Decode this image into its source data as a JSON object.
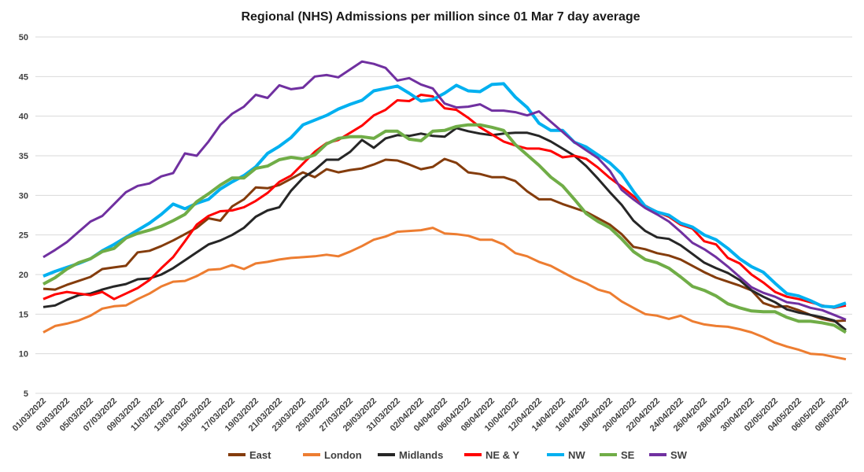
{
  "chart_data": {
    "type": "line",
    "title": "Regional (NHS) Admissions per million since 01 Mar 7 day average",
    "xlabel": "",
    "ylabel": "",
    "ylim": [
      5,
      50
    ],
    "yticks": [
      5,
      10,
      15,
      20,
      25,
      30,
      35,
      40,
      45,
      50
    ],
    "grid": true,
    "legend_position": "bottom",
    "x": [
      "01/03/2022",
      "02/03/2022",
      "03/03/2022",
      "04/03/2022",
      "05/03/2022",
      "06/03/2022",
      "07/03/2022",
      "08/03/2022",
      "09/03/2022",
      "10/03/2022",
      "11/03/2022",
      "12/03/2022",
      "13/03/2022",
      "14/03/2022",
      "15/03/2022",
      "16/03/2022",
      "17/03/2022",
      "18/03/2022",
      "19/03/2022",
      "20/03/2022",
      "21/03/2022",
      "22/03/2022",
      "23/03/2022",
      "24/03/2022",
      "25/03/2022",
      "26/03/2022",
      "27/03/2022",
      "28/03/2022",
      "29/03/2022",
      "30/03/2022",
      "31/03/2022",
      "01/04/2022",
      "02/04/2022",
      "03/04/2022",
      "04/04/2022",
      "05/04/2022",
      "06/04/2022",
      "07/04/2022",
      "08/04/2022",
      "09/04/2022",
      "10/04/2022",
      "11/04/2022",
      "12/04/2022",
      "13/04/2022",
      "14/04/2022",
      "15/04/2022",
      "16/04/2022",
      "17/04/2022",
      "18/04/2022",
      "19/04/2022",
      "20/04/2022",
      "21/04/2022",
      "22/04/2022",
      "23/04/2022",
      "24/04/2022",
      "25/04/2022",
      "26/04/2022",
      "27/04/2022",
      "28/04/2022",
      "29/04/2022",
      "30/04/2022",
      "01/05/2022",
      "02/05/2022",
      "03/05/2022",
      "04/05/2022",
      "05/05/2022",
      "06/05/2022",
      "07/05/2022",
      "08/05/2022"
    ],
    "series": [
      {
        "name": "East",
        "color": "#843c0c",
        "values": [
          18.2,
          18.1,
          18.7,
          19.2,
          19.7,
          20.7,
          20.9,
          21.1,
          22.8,
          23.0,
          23.6,
          24.3,
          25.1,
          25.9,
          27.1,
          26.8,
          28.6,
          29.5,
          31.0,
          30.9,
          31.3,
          32.1,
          32.9,
          32.3,
          33.3,
          32.9,
          33.2,
          33.4,
          33.9,
          34.5,
          34.4,
          33.9,
          33.3,
          33.6,
          34.6,
          34.1,
          32.9,
          32.7,
          32.3,
          32.3,
          31.8,
          30.5,
          29.5,
          29.5,
          28.9,
          28.4,
          27.9,
          27.1,
          26.3,
          25.1,
          23.5,
          23.2,
          22.7,
          22.4,
          21.9,
          21.1,
          20.3,
          19.6,
          19.1,
          18.6,
          18.0,
          16.4,
          15.9,
          16.0,
          15.5,
          14.9,
          14.4,
          14.1,
          14.2
        ]
      },
      {
        "name": "London",
        "color": "#ed7d31",
        "values": [
          12.7,
          13.5,
          13.8,
          14.2,
          14.8,
          15.7,
          16.0,
          16.1,
          16.9,
          17.6,
          18.5,
          19.1,
          19.2,
          19.8,
          20.6,
          20.7,
          21.2,
          20.7,
          21.4,
          21.6,
          21.9,
          22.1,
          22.2,
          22.3,
          22.5,
          22.3,
          22.9,
          23.6,
          24.4,
          24.8,
          25.4,
          25.5,
          25.6,
          25.9,
          25.2,
          25.1,
          24.9,
          24.4,
          24.4,
          23.8,
          22.7,
          22.3,
          21.6,
          21.1,
          20.3,
          19.5,
          18.9,
          18.1,
          17.7,
          16.6,
          15.8,
          15.0,
          14.8,
          14.4,
          14.8,
          14.1,
          13.7,
          13.5,
          13.4,
          13.1,
          12.7,
          12.1,
          11.4,
          10.9,
          10.5,
          10.0,
          9.9,
          9.6,
          9.3
        ]
      },
      {
        "name": "Midlands",
        "color": "#262626",
        "values": [
          15.9,
          16.1,
          16.8,
          17.4,
          17.6,
          18.1,
          18.5,
          18.8,
          19.4,
          19.5,
          20.0,
          20.8,
          21.8,
          22.8,
          23.8,
          24.3,
          25.0,
          25.9,
          27.3,
          28.1,
          28.5,
          30.6,
          32.2,
          33.2,
          34.5,
          34.5,
          35.5,
          37.0,
          36.0,
          37.2,
          37.6,
          37.5,
          37.8,
          37.5,
          37.4,
          38.5,
          38.1,
          37.8,
          37.6,
          37.8,
          37.9,
          37.9,
          37.5,
          36.8,
          35.9,
          35.0,
          33.7,
          32.1,
          30.4,
          28.8,
          26.8,
          25.5,
          24.7,
          24.5,
          23.7,
          22.6,
          21.5,
          20.8,
          20.2,
          19.3,
          18.0,
          17.2,
          16.5,
          15.6,
          15.2,
          14.9,
          14.6,
          14.2,
          13.0
        ]
      },
      {
        "name": "NE & Y",
        "color": "#ff0000",
        "values": [
          16.9,
          17.5,
          17.8,
          17.6,
          17.4,
          17.8,
          16.9,
          17.6,
          18.3,
          19.3,
          20.8,
          22.2,
          24.2,
          26.3,
          27.4,
          28.0,
          28.1,
          28.5,
          29.3,
          30.3,
          31.7,
          32.5,
          34.0,
          35.5,
          36.6,
          37.0,
          37.9,
          38.8,
          40.1,
          40.8,
          42.0,
          41.9,
          42.7,
          42.5,
          41.0,
          40.8,
          39.8,
          38.6,
          37.7,
          36.8,
          36.3,
          35.9,
          35.9,
          35.6,
          34.8,
          35.0,
          34.6,
          33.5,
          32.2,
          31.1,
          29.9,
          28.7,
          27.9,
          27.3,
          26.3,
          25.8,
          24.2,
          23.8,
          22.1,
          21.4,
          20.0,
          19.0,
          17.8,
          17.2,
          16.9,
          16.5,
          16.1,
          15.8,
          16.1
        ]
      },
      {
        "name": "NW",
        "color": "#00b0f0",
        "values": [
          19.8,
          20.4,
          20.9,
          21.4,
          22.0,
          23.0,
          23.8,
          24.7,
          25.6,
          26.5,
          27.6,
          28.9,
          28.3,
          29.0,
          29.5,
          30.8,
          31.7,
          32.5,
          33.6,
          35.3,
          36.2,
          37.3,
          38.9,
          39.5,
          40.1,
          40.9,
          41.5,
          42.0,
          43.2,
          43.5,
          43.8,
          42.9,
          41.9,
          42.1,
          42.9,
          43.9,
          43.2,
          43.1,
          44.0,
          44.1,
          42.4,
          41.1,
          39.1,
          38.2,
          38.2,
          36.7,
          36.1,
          35.1,
          34.1,
          32.7,
          30.5,
          28.6,
          27.9,
          27.5,
          26.5,
          26.0,
          25.0,
          24.4,
          23.3,
          22.0,
          21.0,
          20.3,
          18.9,
          17.6,
          17.3,
          16.7,
          16.0,
          15.9,
          16.4
        ]
      },
      {
        "name": "SE",
        "color": "#70ad47",
        "values": [
          18.8,
          19.6,
          20.7,
          21.5,
          22.0,
          22.9,
          23.3,
          24.6,
          25.2,
          25.6,
          26.1,
          26.8,
          27.6,
          29.2,
          30.2,
          31.3,
          32.2,
          32.2,
          33.4,
          33.7,
          34.5,
          34.8,
          34.6,
          35.1,
          36.5,
          37.2,
          37.4,
          37.4,
          37.2,
          38.1,
          38.1,
          37.1,
          36.9,
          38.1,
          38.2,
          38.7,
          38.9,
          38.9,
          38.6,
          38.2,
          36.4,
          35.1,
          33.8,
          32.3,
          31.2,
          29.5,
          27.7,
          26.7,
          25.9,
          24.5,
          22.9,
          21.9,
          21.5,
          20.8,
          19.7,
          18.5,
          18.0,
          17.3,
          16.3,
          15.8,
          15.4,
          15.3,
          15.3,
          14.6,
          14.1,
          14.1,
          13.9,
          13.6,
          12.7
        ]
      },
      {
        "name": "SW",
        "color": "#7030a0",
        "values": [
          22.2,
          23.1,
          24.1,
          25.4,
          26.7,
          27.4,
          28.9,
          30.4,
          31.2,
          31.5,
          32.4,
          32.8,
          35.3,
          35.0,
          36.8,
          38.9,
          40.3,
          41.2,
          42.7,
          42.3,
          43.9,
          43.4,
          43.6,
          45.0,
          45.2,
          44.9,
          45.9,
          46.9,
          46.6,
          46.1,
          44.5,
          44.8,
          44.0,
          43.5,
          41.6,
          41.1,
          41.2,
          41.5,
          40.7,
          40.7,
          40.5,
          40.1,
          40.6,
          39.3,
          38.0,
          36.7,
          35.7,
          34.7,
          33.1,
          30.7,
          29.5,
          28.4,
          27.6,
          26.7,
          25.4,
          24.0,
          23.2,
          22.2,
          21.0,
          19.7,
          18.4,
          17.7,
          17.2,
          16.5,
          16.3,
          15.8,
          15.5,
          14.9,
          14.3
        ]
      }
    ]
  }
}
